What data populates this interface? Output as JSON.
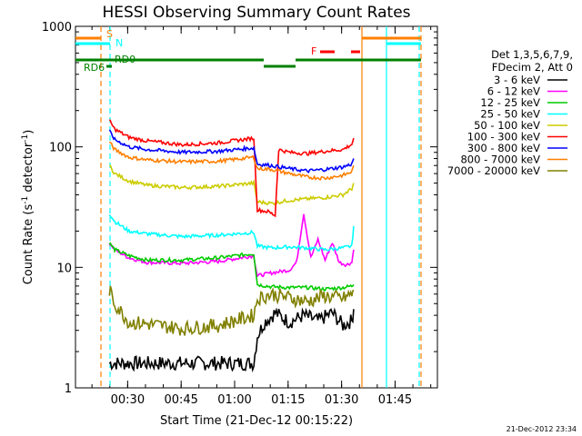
{
  "chart_data": {
    "type": "line",
    "title": "HESSI Observing Summary Count Rates",
    "xlabel": "Start Time (21-Dec-12 00:15:22)",
    "ylabel_main": "Count Rate (s",
    "ylabel_sup1": "-1",
    "ylabel_mid": " detector",
    "ylabel_sup2": "-1",
    "ylabel_end": ")",
    "yscale": "log",
    "ylim": [
      1,
      1000
    ],
    "xlim_minutes": [
      0,
      101.5
    ],
    "xticks": [
      {
        "label": "00:30",
        "minute": 14.63
      },
      {
        "label": "00:45",
        "minute": 29.63
      },
      {
        "label": "01:00",
        "minute": 44.63
      },
      {
        "label": "01:15",
        "minute": 59.63
      },
      {
        "label": "01:30",
        "minute": 74.63
      },
      {
        "label": "01:45",
        "minute": 89.63
      }
    ],
    "yticks": [
      {
        "label": "1",
        "value": 1
      },
      {
        "label": "10",
        "value": 10
      },
      {
        "label": "100",
        "value": 100
      },
      {
        "label": "1000",
        "value": 1000
      }
    ],
    "legend_header": [
      "Det 1,3,5,6,7,9,",
      "FDecim 2, Att 0"
    ],
    "series": [
      {
        "name": "3 - 6 keV",
        "color": "#000000",
        "x": [
          9.5,
          15,
          20,
          30,
          40,
          50,
          51,
          53,
          56,
          60,
          64,
          68,
          72,
          75,
          77.5,
          78
        ],
        "y": [
          1.6,
          1.6,
          1.6,
          1.6,
          1.6,
          1.6,
          2.7,
          3.5,
          4.2,
          3.5,
          4.0,
          3.6,
          4.2,
          3.3,
          3.6,
          4.5
        ]
      },
      {
        "name": "6 - 12 keV",
        "color": "#ff00ff",
        "x": [
          9.5,
          11,
          15,
          20,
          30,
          40,
          50,
          51,
          55,
          60,
          62,
          64,
          66,
          68,
          70,
          72,
          74,
          76,
          77.5,
          78
        ],
        "y": [
          16,
          14,
          12,
          11,
          10.8,
          11.2,
          12.5,
          8.5,
          9.0,
          9.5,
          11,
          28,
          12,
          17,
          11.5,
          16,
          11,
          10.5,
          11,
          14
        ]
      },
      {
        "name": "12 - 25 keV",
        "color": "#00cc00",
        "x": [
          9.5,
          11,
          15,
          20,
          30,
          40,
          50,
          51,
          55,
          60,
          65,
          70,
          75,
          77.5,
          78
        ],
        "y": [
          16,
          14,
          12.5,
          11.5,
          11.5,
          12,
          13,
          7.2,
          6.9,
          6.8,
          6.8,
          6.6,
          6.8,
          7.0,
          7.2
        ]
      },
      {
        "name": "25 - 50 keV",
        "color": "#00ffff",
        "x": [
          9.5,
          11,
          15,
          20,
          30,
          40,
          50,
          51,
          55,
          60,
          65,
          70,
          75,
          77.5,
          78
        ],
        "y": [
          28,
          24,
          20,
          19,
          18,
          18.5,
          19.5,
          15,
          14.5,
          14.8,
          14.5,
          14,
          14.5,
          15,
          22
        ]
      },
      {
        "name": "50 - 100 keV",
        "color": "#cccc00",
        "x": [
          9.5,
          11,
          15,
          20,
          30,
          40,
          50,
          51,
          55,
          60,
          65,
          70,
          75,
          77.5,
          78
        ],
        "y": [
          70,
          60,
          52,
          48,
          46,
          47,
          50,
          35,
          34,
          36,
          37,
          38,
          40,
          45,
          50
        ]
      },
      {
        "name": "100 - 300 keV",
        "color": "#ff0000",
        "x": [
          9.5,
          11,
          15,
          20,
          30,
          40,
          50,
          51,
          54,
          56,
          57,
          60,
          65,
          70,
          75,
          77.5,
          78
        ],
        "y": [
          165,
          140,
          120,
          112,
          104,
          108,
          118,
          30,
          29,
          27,
          95,
          90,
          88,
          92,
          95,
          105,
          118
        ]
      },
      {
        "name": "300 - 800 keV",
        "color": "#0000ff",
        "x": [
          9.5,
          11,
          15,
          20,
          30,
          40,
          50,
          51,
          55,
          60,
          65,
          70,
          75,
          77.5,
          78
        ],
        "y": [
          135,
          115,
          100,
          95,
          90,
          92,
          98,
          72,
          70,
          66,
          63,
          65,
          68,
          72,
          80
        ]
      },
      {
        "name": "800 - 7000 keV",
        "color": "#ff7f00",
        "x": [
          9.5,
          11,
          15,
          20,
          30,
          40,
          50,
          51,
          55,
          60,
          65,
          70,
          75,
          77.5,
          78
        ],
        "y": [
          110,
          95,
          82,
          78,
          75,
          76,
          82,
          66,
          65,
          60,
          56,
          55,
          58,
          62,
          70
        ]
      },
      {
        "name": "7000 - 20000 keV",
        "color": "#808000",
        "x": [
          9.5,
          11,
          15,
          20,
          30,
          40,
          50,
          51,
          55,
          60,
          65,
          70,
          75,
          77.5,
          78
        ],
        "y": [
          6.5,
          5.0,
          3.5,
          3.4,
          3.1,
          3.3,
          4.0,
          5.5,
          6.0,
          5.6,
          5.2,
          5.8,
          5.5,
          6.0,
          6.5
        ]
      }
    ],
    "flags": [
      {
        "name": "S",
        "color": "#ff7f00",
        "label": "S"
      },
      {
        "name": "N",
        "color": "#00ffff",
        "label": "N"
      },
      {
        "name": "RD0",
        "color": "#008000",
        "label": "RD0"
      },
      {
        "name": "RD6",
        "color": "#008000",
        "label": "RD6"
      },
      {
        "name": "F",
        "color": "#ff0000",
        "label": "F"
      }
    ],
    "timestamp": "21-Dec-2012 23:34"
  }
}
